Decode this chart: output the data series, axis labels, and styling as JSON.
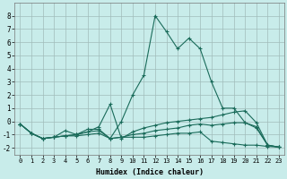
{
  "xlabel": "Humidex (Indice chaleur)",
  "bg_color": "#c8ecea",
  "grid_color": "#a0bcba",
  "line_color": "#1a6b5a",
  "x_data": [
    0,
    1,
    2,
    3,
    4,
    5,
    6,
    7,
    8,
    9,
    10,
    11,
    12,
    13,
    14,
    15,
    16,
    17,
    18,
    19,
    20,
    21,
    22,
    23
  ],
  "series": [
    [
      -0.2,
      -0.9,
      -1.3,
      -1.2,
      -1.1,
      -1.1,
      -1.0,
      -0.9,
      -1.3,
      -1.2,
      -1.2,
      -1.2,
      -1.1,
      -1.0,
      -0.9,
      -0.9,
      -0.8,
      -1.5,
      -1.6,
      -1.7,
      -1.8,
      -1.8,
      -1.9,
      -1.95
    ],
    [
      -0.2,
      -0.9,
      -1.3,
      -1.2,
      -0.7,
      -1.0,
      -0.6,
      -0.6,
      -1.3,
      -1.2,
      -1.0,
      -0.9,
      -0.7,
      -0.6,
      -0.5,
      -0.3,
      -0.2,
      -0.3,
      -0.2,
      -0.1,
      -0.1,
      -0.4,
      -1.8,
      -1.95
    ],
    [
      -0.2,
      -0.9,
      -1.3,
      -1.2,
      -1.1,
      -1.0,
      -0.8,
      -0.4,
      1.3,
      -1.3,
      -0.8,
      -0.5,
      -0.3,
      -0.1,
      0.0,
      0.1,
      0.2,
      0.3,
      0.5,
      0.7,
      0.8,
      -0.1,
      -1.8,
      -1.95
    ],
    [
      -0.2,
      -0.9,
      -1.3,
      -1.2,
      -1.1,
      -1.0,
      -0.8,
      -0.7,
      -1.3,
      0.0,
      2.0,
      3.5,
      8.0,
      6.8,
      5.5,
      6.3,
      5.5,
      3.0,
      1.0,
      1.0,
      -0.1,
      -0.5,
      -1.8,
      -1.95
    ]
  ],
  "ylim": [
    -2.5,
    9.0
  ],
  "xlim": [
    -0.5,
    23.5
  ],
  "yticks": [
    -2,
    -1,
    0,
    1,
    2,
    3,
    4,
    5,
    6,
    7,
    8
  ],
  "xticks": [
    0,
    1,
    2,
    3,
    4,
    5,
    6,
    7,
    8,
    9,
    10,
    11,
    12,
    13,
    14,
    15,
    16,
    17,
    18,
    19,
    20,
    21,
    22,
    23
  ]
}
